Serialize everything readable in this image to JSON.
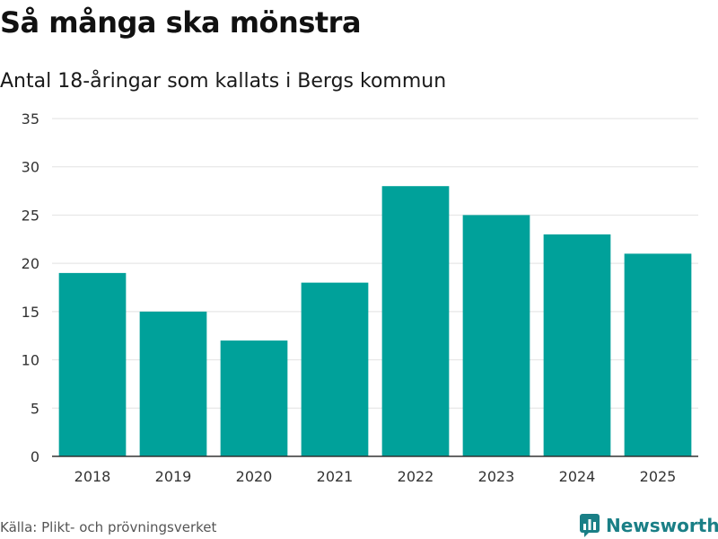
{
  "title": "Så många ska mönstra",
  "subtitle": "Antal 18-åringar som kallats i Bergs kommun",
  "source": "Källa: Plikt- och prövningsverket",
  "brand": {
    "name": "Newsworthy",
    "icon": "newsworthy-logo-icon",
    "color": "#1a7f86"
  },
  "colors": {
    "bar": "#00a19a",
    "grid": "#e2e2e2",
    "axis": "#333333"
  },
  "chart_data": {
    "type": "bar",
    "title": "Så många ska mönstra",
    "subtitle": "Antal 18-åringar som kallats i Bergs kommun",
    "xlabel": "",
    "ylabel": "",
    "categories": [
      "2018",
      "2019",
      "2020",
      "2021",
      "2022",
      "2023",
      "2024",
      "2025"
    ],
    "values": [
      19,
      15,
      12,
      18,
      28,
      25,
      23,
      21
    ],
    "ylim": [
      0,
      35
    ],
    "yticks": [
      0,
      5,
      10,
      15,
      20,
      25,
      30,
      35
    ],
    "grid": true,
    "legend": "none"
  }
}
